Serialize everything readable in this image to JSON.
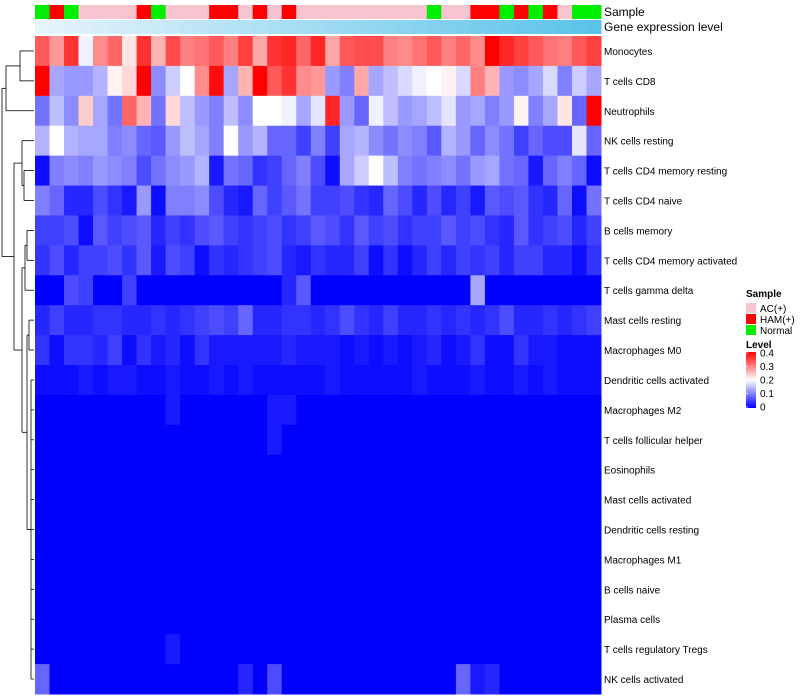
{
  "chart_data": {
    "type": "heatmap",
    "annotation_tracks": [
      {
        "name": "Sample",
        "key": "sample"
      },
      {
        "name": "Gene expression level",
        "key": "expression"
      }
    ],
    "rows": [
      "Monocytes",
      "T cells CD8",
      "Neutrophils",
      "NK cells resting",
      "T cells CD4 memory resting",
      "T cells CD4 naive",
      "B cells memory",
      "T cells CD4 memory activated",
      "T cells gamma delta",
      "Mast cells resting",
      "Macrophages M0",
      "Dendritic cells activated",
      "Macrophages M2",
      "T cells follicular helper",
      "Eosinophils",
      "Mast cells activated",
      "Dendritic cells resting",
      "Macrophages M1",
      "B cells naive",
      "Plasma cells",
      "T cells regulatory  Tregs",
      "NK cells activated"
    ],
    "samples": [
      "Normal",
      "HAM(+)",
      "Normal",
      "AC(+)",
      "AC(+)",
      "AC(+)",
      "AC(+)",
      "HAM(+)",
      "Normal",
      "AC(+)",
      "AC(+)",
      "AC(+)",
      "HAM(+)",
      "HAM(+)",
      "AC(+)",
      "HAM(+)",
      "AC(+)",
      "HAM(+)",
      "AC(+)",
      "AC(+)",
      "AC(+)",
      "AC(+)",
      "AC(+)",
      "AC(+)",
      "AC(+)",
      "AC(+)",
      "AC(+)",
      "Normal",
      "AC(+)",
      "AC(+)",
      "HAM(+)",
      "HAM(+)",
      "Normal",
      "HAM(+)",
      "Normal",
      "HAM(+)",
      "AC(+)",
      "Normal",
      "Normal"
    ],
    "expression_gradient": [
      "#e6f4fb",
      "#5bc3e8"
    ],
    "values": [
      [
        0.33,
        0.28,
        0.36,
        0.19,
        0.29,
        0.32,
        0.22,
        0.36,
        0.26,
        0.34,
        0.3,
        0.31,
        0.33,
        0.3,
        0.35,
        0.27,
        0.36,
        0.37,
        0.32,
        0.37,
        0.27,
        0.33,
        0.34,
        0.34,
        0.3,
        0.29,
        0.31,
        0.33,
        0.3,
        0.32,
        0.29,
        0.4,
        0.37,
        0.35,
        0.33,
        0.31,
        0.3,
        0.33,
        0.35
      ],
      [
        0.4,
        0.13,
        0.12,
        0.12,
        0.14,
        0.21,
        0.23,
        0.4,
        0.11,
        0.16,
        0.2,
        0.29,
        0.39,
        0.13,
        0.26,
        0.4,
        0.33,
        0.36,
        0.29,
        0.28,
        0.12,
        0.1,
        0.27,
        0.13,
        0.15,
        0.17,
        0.19,
        0.2,
        0.21,
        0.17,
        0.3,
        0.26,
        0.12,
        0.11,
        0.13,
        0.17,
        0.1,
        0.16,
        0.13
      ],
      [
        0.09,
        0.15,
        0.11,
        0.24,
        0.13,
        0.09,
        0.32,
        0.26,
        0.09,
        0.23,
        0.15,
        0.12,
        0.1,
        0.15,
        0.11,
        0.2,
        0.2,
        0.19,
        0.13,
        0.18,
        0.37,
        0.12,
        0.08,
        0.19,
        0.15,
        0.12,
        0.13,
        0.15,
        0.18,
        0.12,
        0.13,
        0.1,
        0.12,
        0.21,
        0.1,
        0.13,
        0.22,
        0.08,
        0.4
      ],
      [
        0.14,
        0.2,
        0.14,
        0.13,
        0.13,
        0.1,
        0.11,
        0.08,
        0.07,
        0.12,
        0.15,
        0.13,
        0.1,
        0.2,
        0.12,
        0.14,
        0.08,
        0.08,
        0.05,
        0.1,
        0.05,
        0.13,
        0.14,
        0.11,
        0.09,
        0.11,
        0.1,
        0.07,
        0.14,
        0.12,
        0.08,
        0.11,
        0.09,
        0.05,
        0.08,
        0.06,
        0.06,
        0.18,
        0.08
      ],
      [
        0.01,
        0.1,
        0.11,
        0.1,
        0.12,
        0.11,
        0.1,
        0.06,
        0.09,
        0.11,
        0.12,
        0.14,
        0.02,
        0.09,
        0.08,
        0.04,
        0.05,
        0.08,
        0.1,
        0.06,
        0.01,
        0.13,
        0.16,
        0.2,
        0.15,
        0.1,
        0.09,
        0.1,
        0.11,
        0.09,
        0.12,
        0.13,
        0.09,
        0.08,
        0.02,
        0.08,
        0.1,
        0.08,
        0.01
      ],
      [
        0.1,
        0.08,
        0.03,
        0.03,
        0.06,
        0.04,
        0.02,
        0.12,
        0.01,
        0.1,
        0.1,
        0.11,
        0.06,
        0.03,
        0.02,
        0.08,
        0.05,
        0.07,
        0.09,
        0.05,
        0.05,
        0.06,
        0.04,
        0.03,
        0.08,
        0.06,
        0.03,
        0.06,
        0.03,
        0.05,
        0.02,
        0.07,
        0.06,
        0.07,
        0.04,
        0.03,
        0.08,
        0.01,
        0.09
      ],
      [
        0.05,
        0.05,
        0.06,
        0.01,
        0.07,
        0.05,
        0.06,
        0.07,
        0.03,
        0.05,
        0.04,
        0.06,
        0.07,
        0.05,
        0.04,
        0.05,
        0.06,
        0.04,
        0.05,
        0.07,
        0.06,
        0.04,
        0.07,
        0.05,
        0.06,
        0.04,
        0.05,
        0.05,
        0.07,
        0.05,
        0.06,
        0.04,
        0.03,
        0.07,
        0.04,
        0.05,
        0.06,
        0.03,
        0.05
      ],
      [
        0.04,
        0.06,
        0.03,
        0.05,
        0.05,
        0.06,
        0.04,
        0.07,
        0.02,
        0.06,
        0.05,
        0.01,
        0.04,
        0.03,
        0.04,
        0.05,
        0.06,
        0.03,
        0.02,
        0.04,
        0.03,
        0.03,
        0.05,
        0.01,
        0.04,
        0.01,
        0.03,
        0.05,
        0.03,
        0.05,
        0.04,
        0.05,
        0.03,
        0.05,
        0.05,
        0.03,
        0.03,
        0.01,
        0.04
      ],
      [
        0,
        0,
        0.06,
        0.05,
        0,
        0,
        0.05,
        0,
        0,
        0,
        0,
        0,
        0,
        0,
        0,
        0,
        0,
        0.03,
        0.07,
        0,
        0,
        0,
        0,
        0,
        0,
        0,
        0,
        0,
        0,
        0,
        0.13,
        0,
        0,
        0,
        0,
        0,
        0,
        0,
        0
      ],
      [
        0.03,
        0.05,
        0.03,
        0.03,
        0.04,
        0.04,
        0.03,
        0.03,
        0.04,
        0.03,
        0.04,
        0.05,
        0.06,
        0.05,
        0.08,
        0.03,
        0.03,
        0.04,
        0.04,
        0.03,
        0.04,
        0.06,
        0.04,
        0.03,
        0.05,
        0.03,
        0.03,
        0.04,
        0.03,
        0.04,
        0.03,
        0.04,
        0.06,
        0.03,
        0.03,
        0.04,
        0.03,
        0.04,
        0.05
      ],
      [
        0.04,
        0.01,
        0.04,
        0.04,
        0.03,
        0.05,
        0.01,
        0.04,
        0.02,
        0.03,
        0.01,
        0.04,
        0.02,
        0.02,
        0.02,
        0.02,
        0.02,
        0.03,
        0.02,
        0.02,
        0.02,
        0.01,
        0.02,
        0.01,
        0.02,
        0.01,
        0.02,
        0.03,
        0.01,
        0.02,
        0.04,
        0.01,
        0.01,
        0.04,
        0.02,
        0.02,
        0.01,
        0.01,
        0.01
      ],
      [
        0.01,
        0.01,
        0.01,
        0.02,
        0.01,
        0.02,
        0.02,
        0.01,
        0.01,
        0.02,
        0.01,
        0.01,
        0.02,
        0.01,
        0.02,
        0.01,
        0.01,
        0.01,
        0.01,
        0.01,
        0.02,
        0.01,
        0.01,
        0.01,
        0.01,
        0.01,
        0.02,
        0.01,
        0.01,
        0.01,
        0.02,
        0.01,
        0.01,
        0.02,
        0.01,
        0.02,
        0.01,
        0.01,
        0.01
      ],
      [
        0,
        0,
        0,
        0,
        0,
        0,
        0,
        0,
        0,
        0.02,
        0,
        0,
        0,
        0,
        0,
        0,
        0.02,
        0.02,
        0,
        0,
        0,
        0,
        0,
        0,
        0,
        0,
        0,
        0,
        0,
        0,
        0,
        0,
        0,
        0,
        0,
        0,
        0,
        0,
        0
      ],
      [
        0,
        0,
        0,
        0,
        0,
        0,
        0,
        0,
        0,
        0,
        0,
        0,
        0,
        0,
        0,
        0,
        0.02,
        0,
        0,
        0,
        0,
        0,
        0,
        0,
        0,
        0,
        0,
        0,
        0,
        0,
        0,
        0,
        0,
        0,
        0,
        0,
        0,
        0,
        0
      ],
      [
        0,
        0,
        0,
        0,
        0,
        0,
        0,
        0,
        0,
        0,
        0,
        0,
        0,
        0,
        0,
        0,
        0,
        0,
        0,
        0,
        0,
        0,
        0,
        0,
        0,
        0,
        0,
        0,
        0,
        0,
        0,
        0,
        0,
        0,
        0,
        0,
        0,
        0,
        0
      ],
      [
        0,
        0,
        0,
        0,
        0,
        0,
        0,
        0,
        0,
        0,
        0,
        0,
        0,
        0,
        0,
        0,
        0,
        0,
        0,
        0,
        0,
        0,
        0,
        0,
        0,
        0,
        0,
        0,
        0,
        0,
        0,
        0,
        0,
        0,
        0,
        0,
        0,
        0,
        0
      ],
      [
        0,
        0,
        0,
        0,
        0,
        0,
        0,
        0,
        0,
        0,
        0,
        0,
        0,
        0,
        0,
        0,
        0,
        0,
        0,
        0,
        0,
        0,
        0,
        0,
        0,
        0,
        0,
        0,
        0,
        0,
        0,
        0,
        0,
        0,
        0,
        0,
        0,
        0,
        0
      ],
      [
        0,
        0,
        0,
        0,
        0,
        0,
        0,
        0,
        0,
        0,
        0,
        0,
        0,
        0,
        0,
        0,
        0,
        0,
        0,
        0,
        0,
        0,
        0,
        0,
        0,
        0,
        0,
        0,
        0,
        0,
        0,
        0,
        0,
        0,
        0,
        0,
        0,
        0,
        0
      ],
      [
        0,
        0,
        0,
        0,
        0,
        0,
        0,
        0,
        0,
        0,
        0,
        0,
        0,
        0,
        0,
        0,
        0,
        0,
        0,
        0,
        0,
        0,
        0,
        0,
        0,
        0,
        0,
        0,
        0,
        0,
        0,
        0,
        0,
        0,
        0,
        0,
        0,
        0,
        0
      ],
      [
        0,
        0,
        0,
        0,
        0,
        0,
        0,
        0,
        0,
        0,
        0,
        0,
        0,
        0,
        0,
        0,
        0,
        0,
        0,
        0,
        0,
        0,
        0,
        0,
        0,
        0,
        0,
        0,
        0,
        0,
        0,
        0,
        0,
        0,
        0,
        0,
        0,
        0,
        0
      ],
      [
        0,
        0,
        0,
        0,
        0,
        0,
        0,
        0,
        0,
        0.02,
        0,
        0,
        0,
        0,
        0,
        0,
        0,
        0,
        0,
        0,
        0,
        0,
        0,
        0,
        0,
        0,
        0,
        0,
        0,
        0,
        0,
        0,
        0,
        0,
        0,
        0,
        0,
        0,
        0
      ],
      [
        0.08,
        0,
        0,
        0,
        0,
        0,
        0,
        0,
        0,
        0,
        0,
        0,
        0,
        0,
        0.03,
        0,
        0.06,
        0,
        0,
        0,
        0,
        0,
        0,
        0,
        0,
        0,
        0,
        0,
        0,
        0.08,
        0.02,
        0.03,
        0,
        0,
        0,
        0,
        0,
        0,
        0
      ]
    ],
    "legend": {
      "sample_title": "Sample",
      "sample_entries": [
        {
          "label": "AC(+)",
          "color": "#f8c4d0"
        },
        {
          "label": "HAM(+)",
          "color": "#ff0000"
        },
        {
          "label": "Normal",
          "color": "#00ee00"
        }
      ],
      "level_title": "Level",
      "level_ticks": [
        "0.4",
        "0.3",
        "0.2",
        "0.1",
        "0"
      ],
      "level_range": [
        0,
        0.4
      ],
      "level_colors": {
        "low": "#0000ff",
        "mid": "#ffffff",
        "high": "#ff0000"
      }
    },
    "dendrogram": "rows clustered (hierarchical)"
  }
}
